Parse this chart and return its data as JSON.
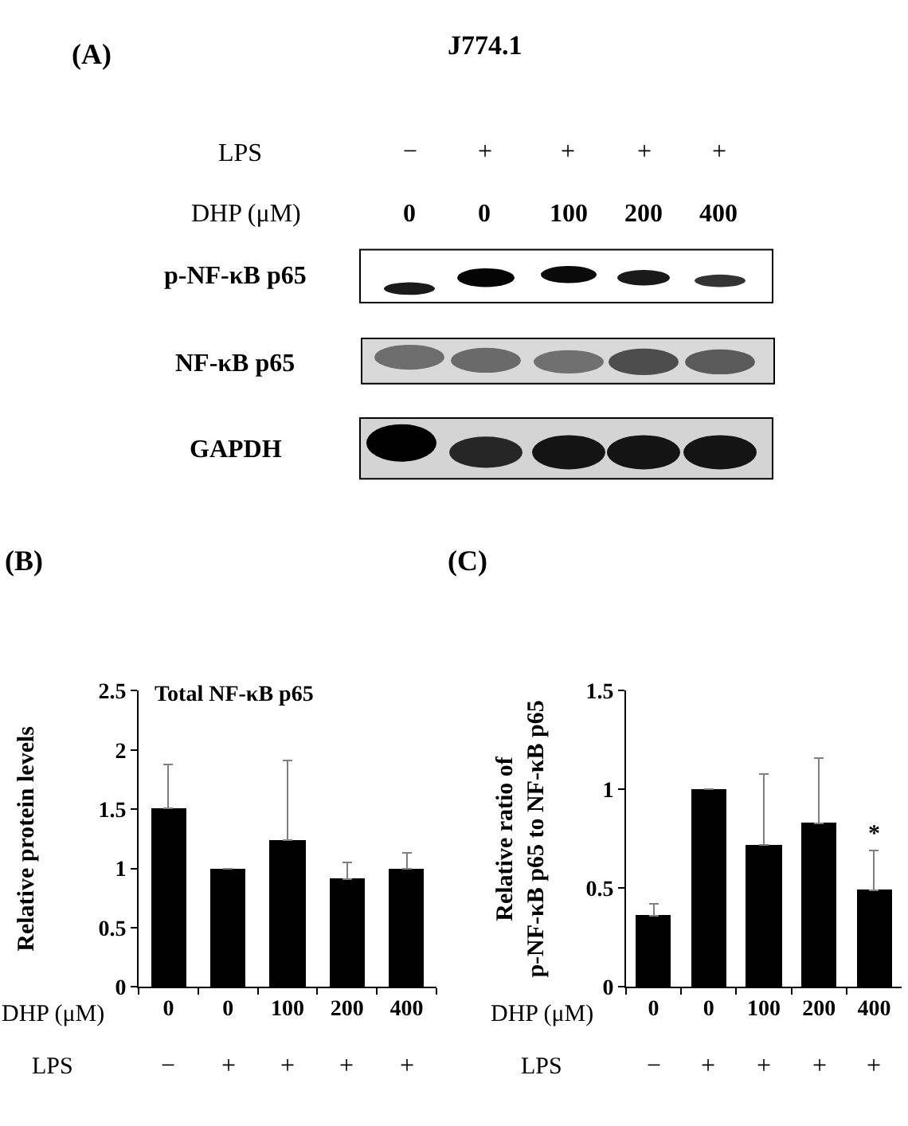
{
  "chart_data": [
    {
      "type": "other",
      "title": "J774.1",
      "annotations": [
        "(A)",
        "LPS",
        "−",
        "+",
        "+",
        "+",
        "+",
        "DHP (μM)",
        "0",
        "0",
        "100",
        "200",
        "400",
        "p-NF-κB p65",
        "NF-κB p65",
        "GAPDH"
      ]
    },
    {
      "type": "bar",
      "title": "Total NF-κB p65",
      "categories": [
        "0",
        "0",
        "100",
        "200",
        "400"
      ],
      "values": [
        1.51,
        1.0,
        1.24,
        0.91,
        1.0
      ],
      "color": "#000000",
      "errors": [
        [
          1.51,
          1.88
        ],
        null,
        [
          1.24,
          1.91
        ],
        [
          0.91,
          1.05
        ],
        [
          1.0,
          1.13
        ]
      ],
      "ylim": [
        0,
        2.5
      ],
      "yticks": [
        0,
        0.5,
        1,
        1.5,
        2,
        2.5
      ],
      "xlabel": "DHP (μM)",
      "ylabel": "Relative protein levels",
      "annotations": [
        "(B)",
        "LPS",
        "−",
        "+",
        "+",
        "+",
        "+"
      ]
    },
    {
      "type": "bar",
      "categories": [
        "0",
        "0",
        "100",
        "200",
        "400"
      ],
      "values": [
        0.36,
        1.0,
        0.72,
        0.83,
        0.49
      ],
      "color": "#000000",
      "errors": [
        [
          0.36,
          0.42
        ],
        null,
        [
          0.72,
          1.08
        ],
        [
          0.83,
          1.16
        ],
        [
          0.49,
          0.69
        ]
      ],
      "ylim": [
        0,
        1.5
      ],
      "yticks": [
        0,
        0.5,
        1,
        1.5
      ],
      "xlabel": "DHP (μM)",
      "ylabel": "Relative ratio of\np-NF-κB p65 to NF-κB p65",
      "annotations": [
        "(C)",
        "LPS",
        "−",
        "+",
        "+",
        "+",
        "+",
        {
          "text": "*",
          "x": "400",
          "y": 0.69
        }
      ]
    }
  ]
}
